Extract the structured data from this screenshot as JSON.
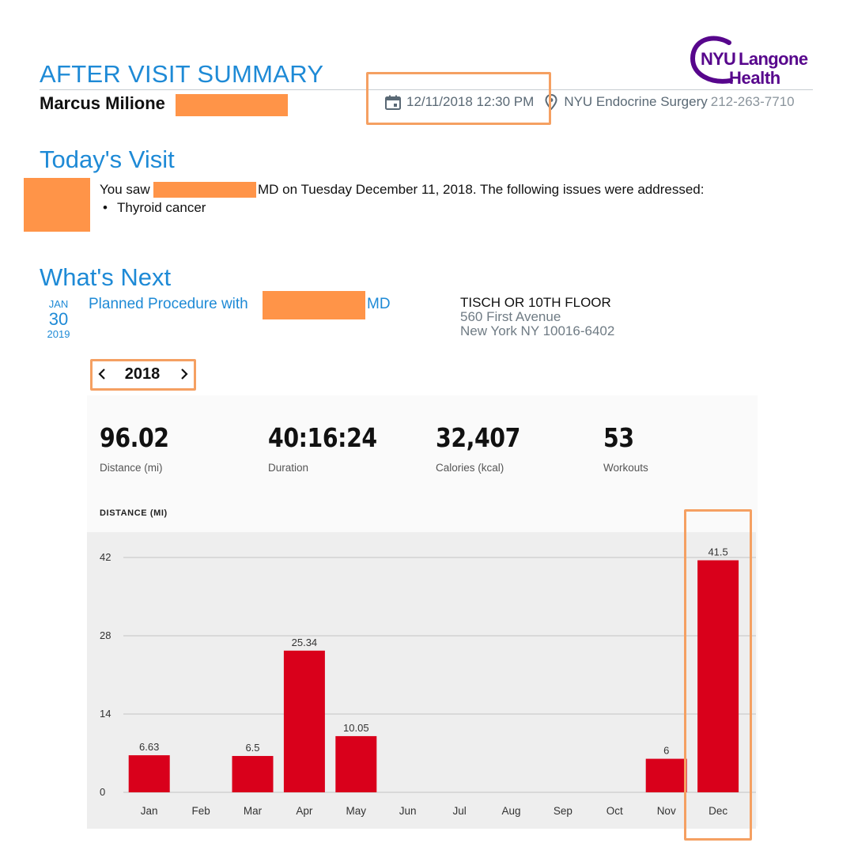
{
  "summary": {
    "title": "AFTER VISIT SUMMARY",
    "patient_name": "Marcus Milione",
    "visit_datetime": "12/11/2018 12:30 PM",
    "department": "NYU Endocrine Surgery",
    "department_phone": "212-263-7710",
    "logo": {
      "line1_a": "NYU",
      "line1_b": "Langone",
      "line2": "Health",
      "color": "#57068c"
    }
  },
  "todays_visit": {
    "heading": "Today's Visit",
    "saw_prefix": "You saw",
    "saw_suffix": "MD on Tuesday December 11, 2018. The following issues were addressed:",
    "issues": [
      "Thyroid cancer"
    ]
  },
  "whats_next": {
    "heading": "What's Next",
    "appointment": {
      "month": "JAN",
      "day": "30",
      "year": "2019",
      "title_prefix": "Planned Procedure with",
      "title_suffix": "MD",
      "location_name": "TISCH OR 10TH FLOOR",
      "address_line1": "560 First Avenue",
      "address_line2": "New York NY 10016-6402"
    }
  },
  "year_selector": {
    "year": "2018",
    "prev_icon": "chevron-left-icon",
    "next_icon": "chevron-right-icon"
  },
  "stats": [
    {
      "value": "96.02",
      "label": "Distance (mi)"
    },
    {
      "value": "40:16:24",
      "label": "Duration"
    },
    {
      "value": "32,407",
      "label": "Calories (kcal)"
    },
    {
      "value": "53",
      "label": "Workouts"
    }
  ],
  "chart_heading": "DISTANCE (MI)",
  "colors": {
    "accent_blue": "#1e8ad6",
    "bar_red": "#d9001b",
    "highlight_orange": "#f5a062",
    "redaction": "#ff9448"
  },
  "chart_data": {
    "type": "bar",
    "title": "DISTANCE (MI)",
    "categories": [
      "Jan",
      "Feb",
      "Mar",
      "Apr",
      "May",
      "Jun",
      "Jul",
      "Aug",
      "Sep",
      "Oct",
      "Nov",
      "Dec"
    ],
    "values": [
      6.63,
      0,
      6.5,
      25.34,
      10.05,
      0,
      0,
      0,
      0,
      0,
      6,
      41.5
    ],
    "data_labels": [
      "6.63",
      "",
      "6.5",
      "25.34",
      "10.05",
      "",
      "",
      "",
      "",
      "",
      "6",
      "41.5"
    ],
    "yticks": [
      0,
      14,
      28,
      42
    ],
    "ylim": [
      0,
      42
    ],
    "grid": true,
    "legend": "none",
    "xlabel": "",
    "ylabel": ""
  }
}
